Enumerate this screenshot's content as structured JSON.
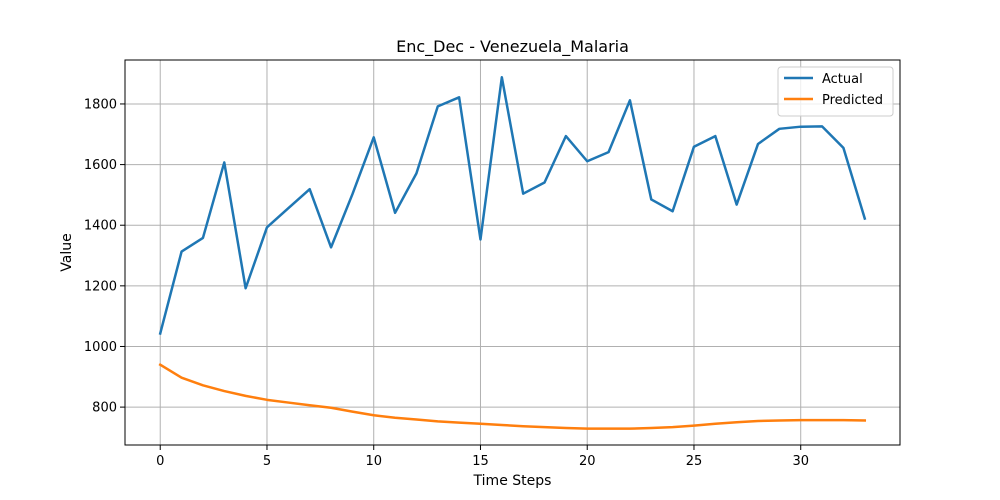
{
  "chart_data": {
    "type": "line",
    "title": "Enc_Dec - Venezuela_Malaria",
    "xlabel": "Time Steps",
    "ylabel": "Value",
    "xlim": [
      -1.65,
      34.65
    ],
    "ylim": [
      675,
      1945
    ],
    "xticks": [
      0,
      5,
      10,
      15,
      20,
      25,
      30
    ],
    "yticks": [
      800,
      1000,
      1200,
      1400,
      1600,
      1800
    ],
    "grid": true,
    "legend_position": "top-right",
    "x": [
      0,
      1,
      2,
      3,
      4,
      5,
      6,
      7,
      8,
      9,
      10,
      11,
      12,
      13,
      14,
      15,
      16,
      17,
      18,
      19,
      20,
      21,
      22,
      23,
      24,
      25,
      26,
      27,
      28,
      29,
      30,
      31,
      32,
      33
    ],
    "series": [
      {
        "name": "Actual",
        "color": "#1f77b4",
        "values": [
          1043,
          1313,
          1358,
          1607,
          1192,
          1393,
          1456,
          1519,
          1327,
          1502,
          1690,
          1441,
          1571,
          1792,
          1822,
          1353,
          1888,
          1504,
          1541,
          1694,
          1611,
          1641,
          1812,
          1485,
          1446,
          1659,
          1694,
          1468,
          1668,
          1718,
          1725,
          1726,
          1655,
          1422
        ]
      },
      {
        "name": "Predicted",
        "color": "#ff7f0e",
        "values": [
          940,
          897,
          872,
          853,
          837,
          824,
          815,
          806,
          798,
          785,
          773,
          765,
          759,
          753,
          749,
          745,
          741,
          737,
          734,
          731,
          729,
          729,
          729,
          731,
          734,
          739,
          745,
          750,
          754,
          756,
          757,
          757,
          757,
          756
        ]
      }
    ]
  }
}
